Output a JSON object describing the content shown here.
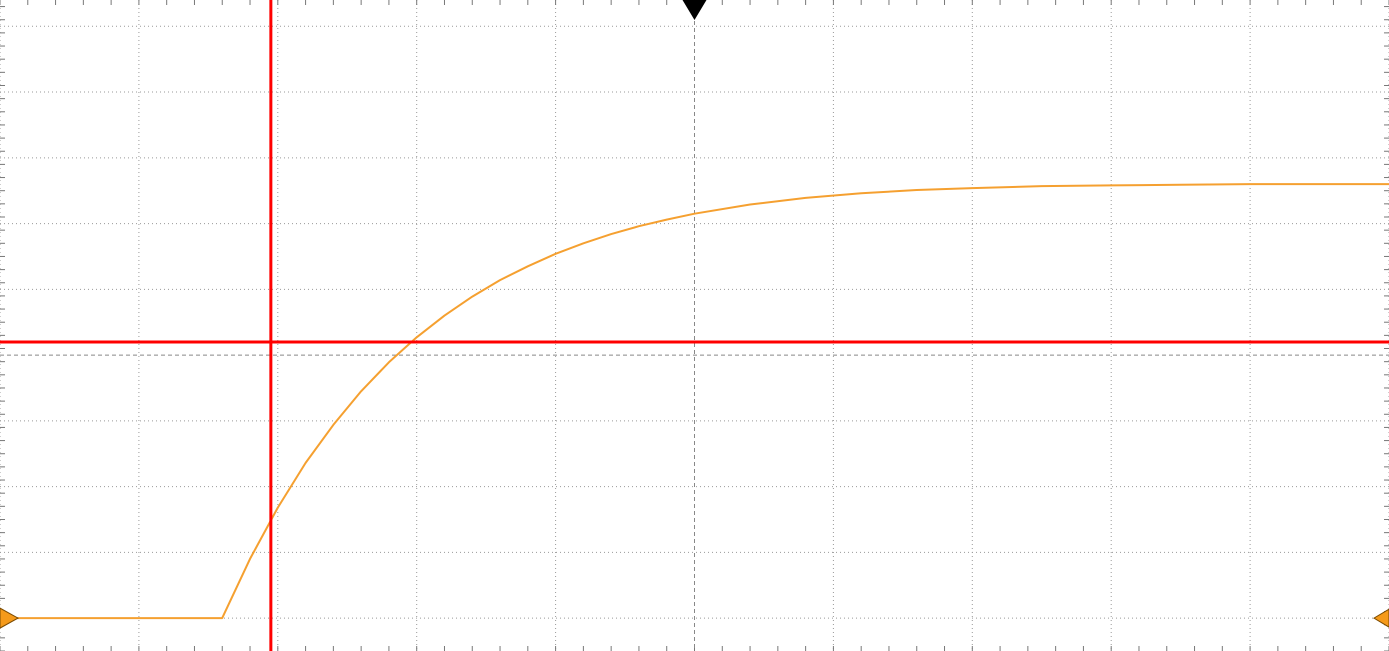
{
  "chart_data": {
    "type": "line",
    "title": "",
    "xlabel": "",
    "ylabel": "",
    "xlim": [
      -5,
      5
    ],
    "ylim": [
      -4.5,
      5.4
    ],
    "grid": true,
    "series": [
      {
        "color": "#f5a030",
        "x": [
          -5.0,
          -3.4,
          -3.2,
          -3.0,
          -2.8,
          -2.6,
          -2.4,
          -2.2,
          -2.0,
          -1.8,
          -1.6,
          -1.4,
          -1.2,
          -1.0,
          -0.8,
          -0.6,
          -0.4,
          -0.2,
          0.0,
          0.4,
          0.8,
          1.2,
          1.6,
          2.0,
          2.5,
          3.0,
          3.5,
          4.0,
          4.5,
          5.0
        ],
        "y": [
          -4.0,
          -4.0,
          -3.1,
          -2.32,
          -1.64,
          -1.06,
          -0.55,
          -0.11,
          0.27,
          0.6,
          0.89,
          1.14,
          1.35,
          1.54,
          1.7,
          1.84,
          1.96,
          2.06,
          2.15,
          2.29,
          2.39,
          2.46,
          2.51,
          2.54,
          2.57,
          2.58,
          2.59,
          2.6,
          2.6,
          2.6
        ]
      }
    ],
    "cursors": {
      "vertical_x": -3.05,
      "horizontal_y": 0.2,
      "color": "#ff0000"
    },
    "trigger_marker": {
      "x": 0.0,
      "color": "#000000"
    },
    "channel_level_marker": {
      "y": -4.0,
      "color": "#f59a1a"
    },
    "grid_color": "#999999",
    "center_line_color": "#888888",
    "background": "#ffffff"
  }
}
